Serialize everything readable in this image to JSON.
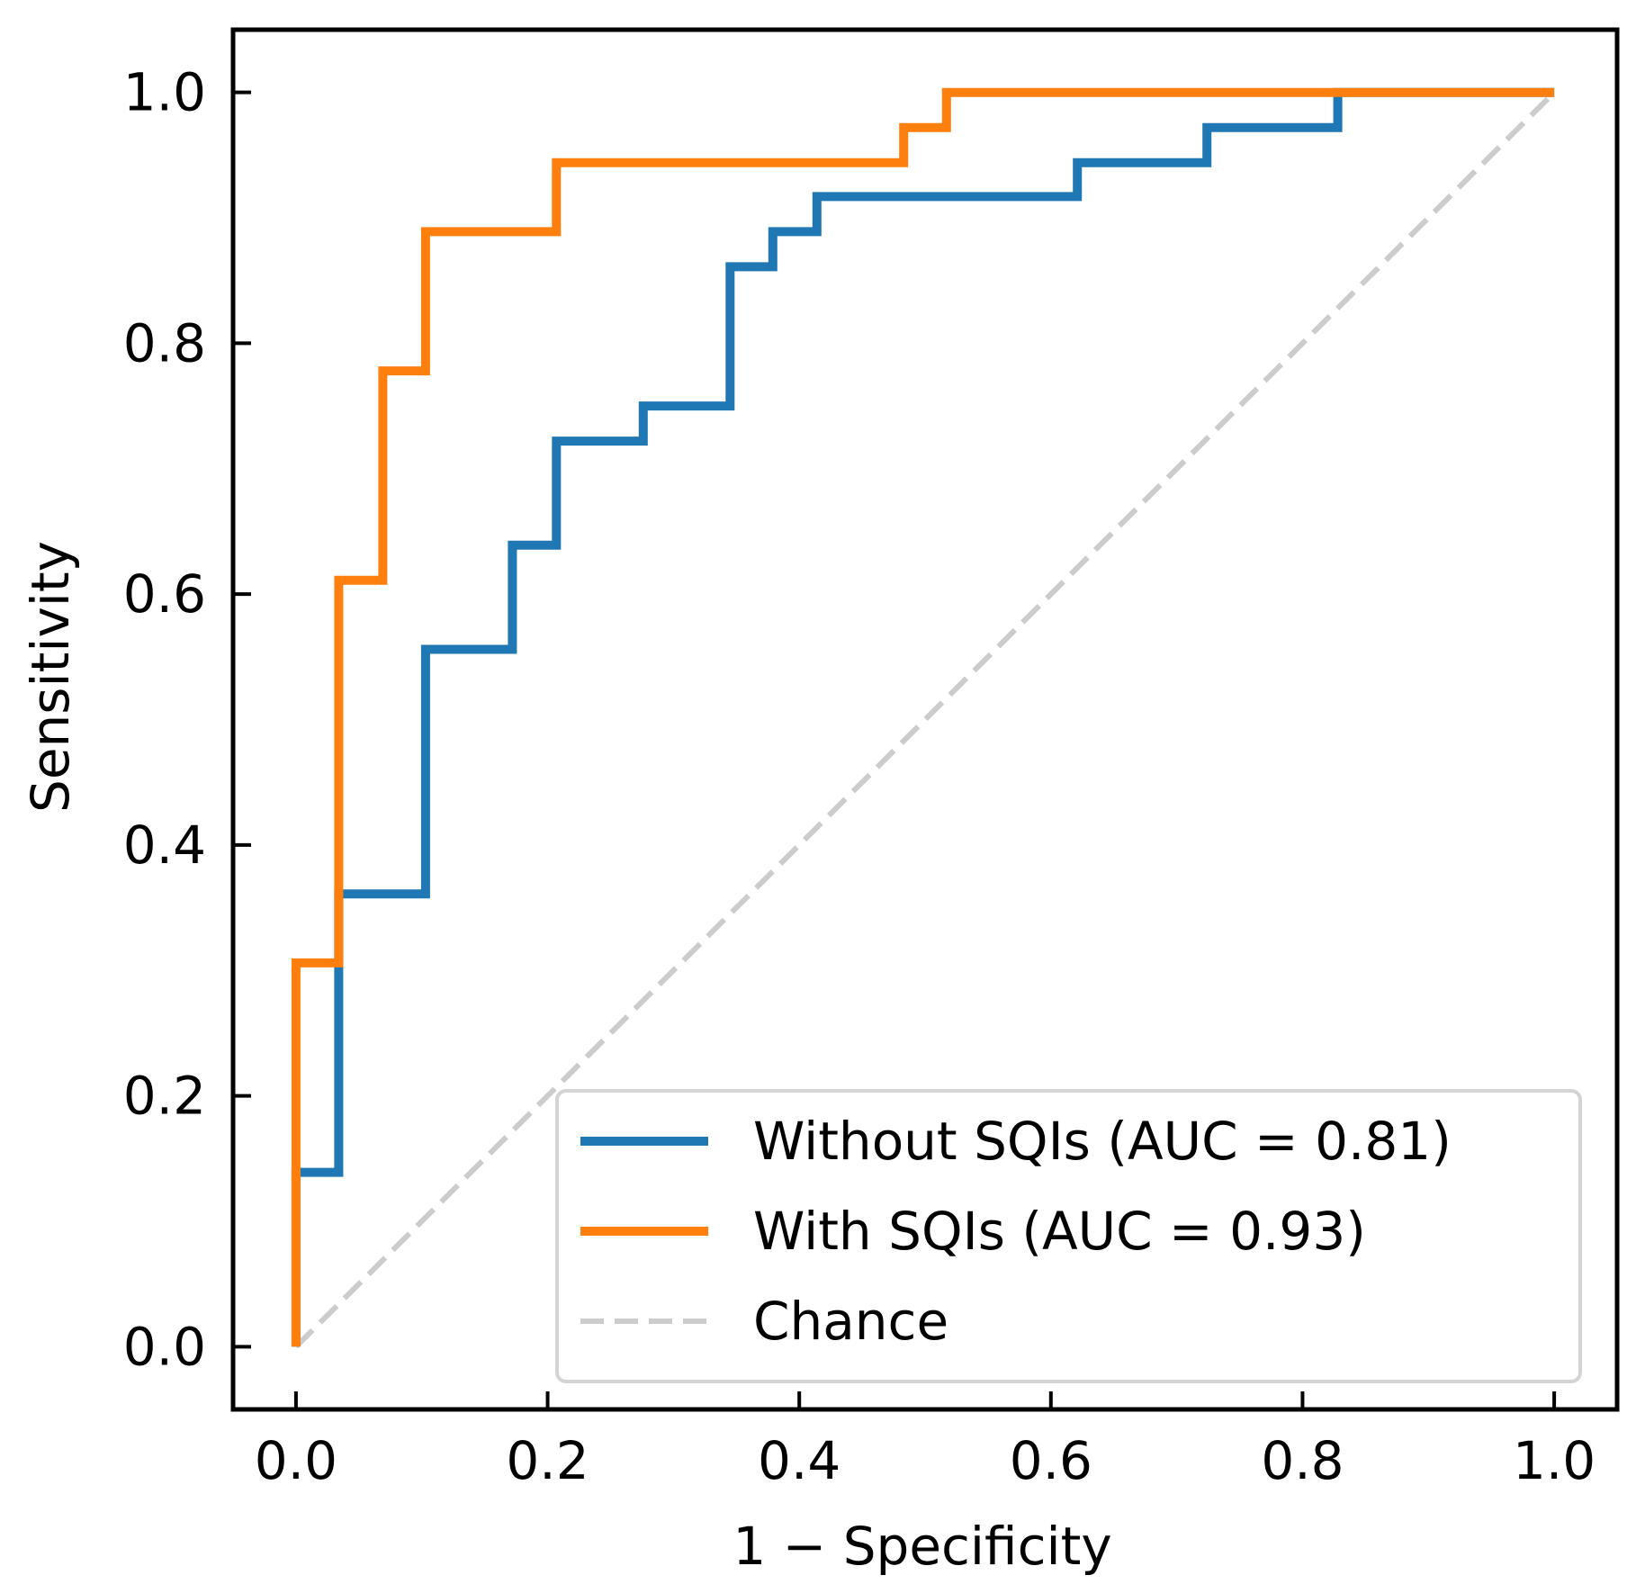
{
  "chart_data": {
    "type": "line",
    "title": "",
    "xlabel": "1 − Specificity",
    "ylabel": "Sensitivity",
    "xlim": [
      -0.05,
      1.05
    ],
    "ylim": [
      -0.05,
      1.05
    ],
    "xticks": [
      0.0,
      0.2,
      0.4,
      0.6,
      0.8,
      1.0
    ],
    "yticks": [
      0.0,
      0.2,
      0.4,
      0.6,
      0.8,
      1.0
    ],
    "xtick_labels": [
      "0.0",
      "0.2",
      "0.4",
      "0.6",
      "0.8",
      "1.0"
    ],
    "ytick_labels": [
      "0.0",
      "0.2",
      "0.4",
      "0.6",
      "0.8",
      "1.0"
    ],
    "grid": false,
    "legend_position": "lower-right",
    "series": [
      {
        "name": "Without SQIs (AUC = 0.81)",
        "color": "#1f77b4",
        "style": "solid",
        "x": [
          0.0,
          0.0,
          0.034,
          0.034,
          0.034,
          0.103,
          0.103,
          0.172,
          0.172,
          0.207,
          0.207,
          0.276,
          0.276,
          0.345,
          0.345,
          0.379,
          0.379,
          0.414,
          0.414,
          0.621,
          0.621,
          0.724,
          0.724,
          0.828,
          0.828,
          1.0
        ],
        "y": [
          0.0,
          0.139,
          0.139,
          0.306,
          0.361,
          0.361,
          0.556,
          0.556,
          0.639,
          0.639,
          0.722,
          0.722,
          0.75,
          0.75,
          0.861,
          0.861,
          0.889,
          0.889,
          0.917,
          0.917,
          0.944,
          0.944,
          0.972,
          0.972,
          1.0,
          1.0
        ]
      },
      {
        "name": "With SQIs (AUC = 0.93)",
        "color": "#ff7f0e",
        "style": "solid",
        "x": [
          0.0,
          0.0,
          0.034,
          0.034,
          0.069,
          0.069,
          0.103,
          0.103,
          0.207,
          0.207,
          0.483,
          0.483,
          0.517,
          0.517,
          1.0
        ],
        "y": [
          0.0,
          0.306,
          0.306,
          0.611,
          0.611,
          0.778,
          0.778,
          0.889,
          0.889,
          0.944,
          0.944,
          0.972,
          0.972,
          1.0,
          1.0
        ]
      },
      {
        "name": "Chance",
        "color": "#cccccc",
        "style": "dashed",
        "x": [
          0.0,
          1.0
        ],
        "y": [
          0.0,
          1.0
        ]
      }
    ]
  }
}
